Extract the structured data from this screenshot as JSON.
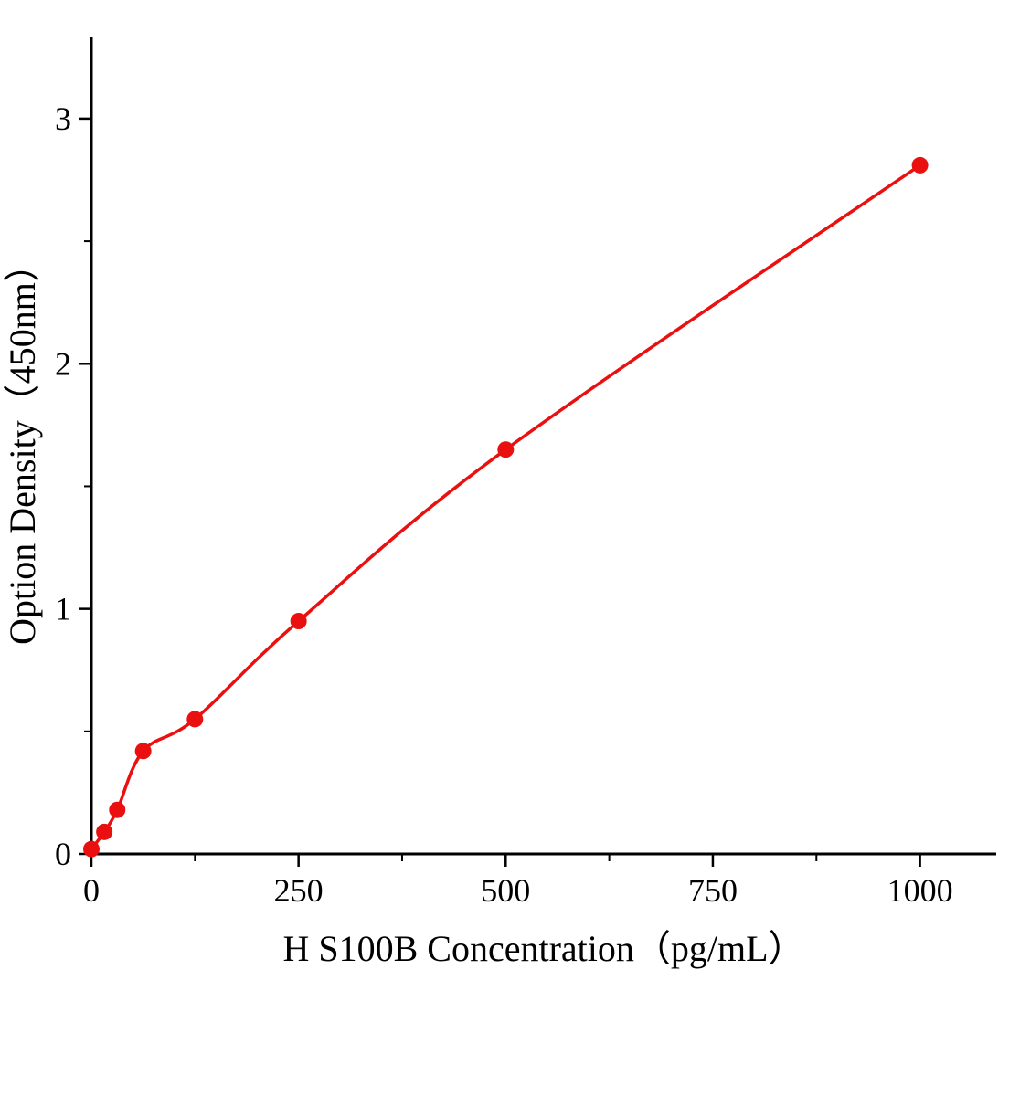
{
  "chart_data": {
    "type": "scatter",
    "title": "",
    "xlabel": "H S100B Concentration（pg/mL）",
    "ylabel": "Option Density（450nm）",
    "x": [
      0,
      15.6,
      31.2,
      62.5,
      125,
      250,
      500,
      1000
    ],
    "y": [
      0.02,
      0.09,
      0.18,
      0.42,
      0.55,
      0.95,
      1.65,
      2.81
    ],
    "xlim": [
      0,
      1092
    ],
    "ylim": [
      0,
      3.335
    ],
    "x_ticks": [
      0,
      250,
      500,
      750,
      1000
    ],
    "x_tick_labels": [
      "0",
      "250",
      "500",
      "750",
      "1000"
    ],
    "x_minor_ticks": [
      125,
      375,
      625,
      875
    ],
    "y_ticks": [
      0,
      1,
      2,
      3
    ],
    "y_tick_labels": [
      "0",
      "1",
      "2",
      "3"
    ],
    "y_minor_ticks": [
      0.5,
      1.5,
      2.5
    ],
    "grid": false,
    "legend_position": "none",
    "colors": {
      "line": "#ea1010",
      "marker": "#ea1010",
      "axis": "#000000",
      "background": "#ffffff"
    },
    "marker_radius": 9,
    "line_width": 3.5
  }
}
